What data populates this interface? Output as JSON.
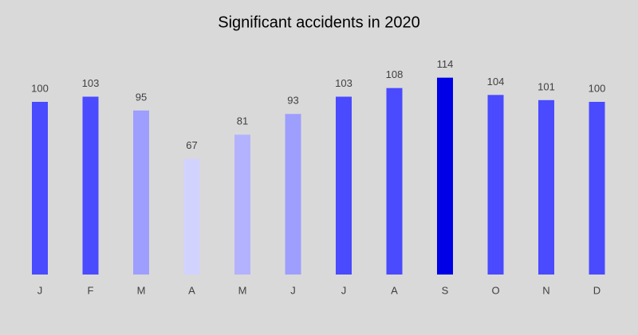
{
  "chart_data": {
    "type": "bar",
    "title": "Significant accidents in 2020",
    "categories": [
      "J",
      "F",
      "M",
      "A",
      "M",
      "J",
      "J",
      "A",
      "S",
      "O",
      "N",
      "D"
    ],
    "values": [
      100,
      103,
      95,
      67,
      81,
      93,
      103,
      108,
      114,
      104,
      101,
      100
    ],
    "colors": [
      "#4a4aff",
      "#4a4aff",
      "#9e9eff",
      "#d2d2ff",
      "#b2b2ff",
      "#9e9eff",
      "#4a4aff",
      "#4a4aff",
      "#0000e6",
      "#4a4aff",
      "#4a4aff",
      "#4a4aff"
    ]
  }
}
